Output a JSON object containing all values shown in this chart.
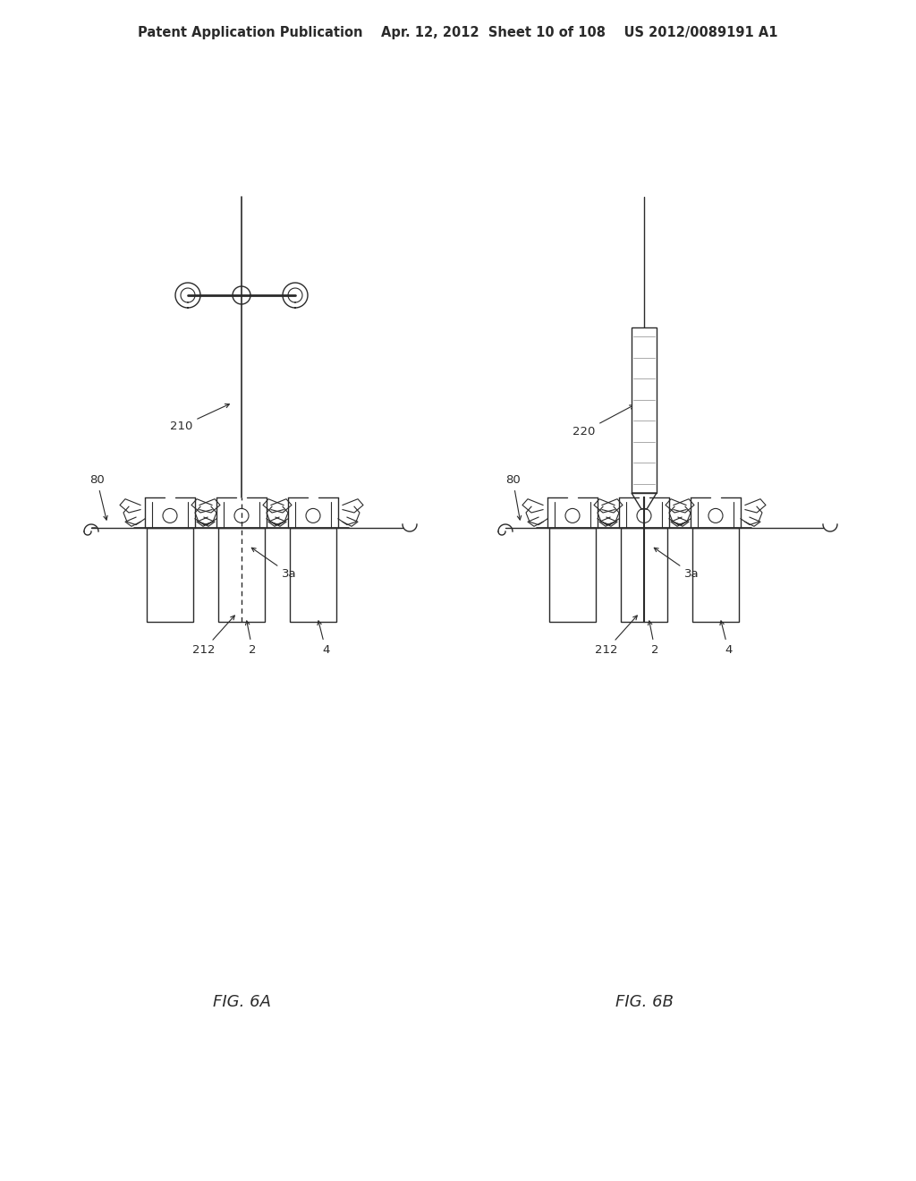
{
  "bg_color": "#ffffff",
  "header_text": "Patent Application Publication    Apr. 12, 2012  Sheet 10 of 108    US 2012/0089191 A1",
  "header_font_size": 10.5,
  "fig6a_label": "FIG. 6A",
  "fig6b_label": "FIG. 6B",
  "line_color": "#2a2a2a",
  "ref_fontsize": 9.5,
  "fig_label_fontsize": 13
}
